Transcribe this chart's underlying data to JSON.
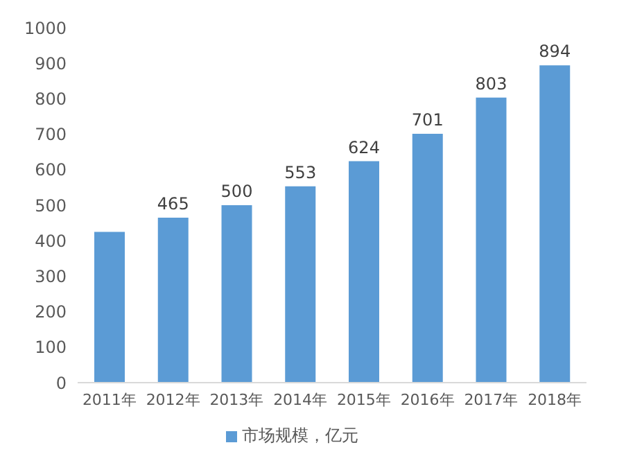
{
  "chart_data": {
    "type": "bar",
    "categories": [
      "2011年",
      "2012年",
      "2013年",
      "2014年",
      "2015年",
      "2016年",
      "2017年",
      "2018年"
    ],
    "series": [
      {
        "name": "市场规模，亿元",
        "color": "#5b9bd5",
        "values": [
          425,
          465,
          500,
          553,
          624,
          701,
          803,
          894
        ]
      }
    ],
    "value_labels": [
      null,
      "465",
      "500",
      "553",
      "624",
      "701",
      "803",
      "894"
    ],
    "ylim": [
      0,
      1000
    ],
    "yticks": [
      0,
      100,
      200,
      300,
      400,
      500,
      600,
      700,
      800,
      900,
      1000
    ],
    "grid": false,
    "legend": "bottom"
  }
}
